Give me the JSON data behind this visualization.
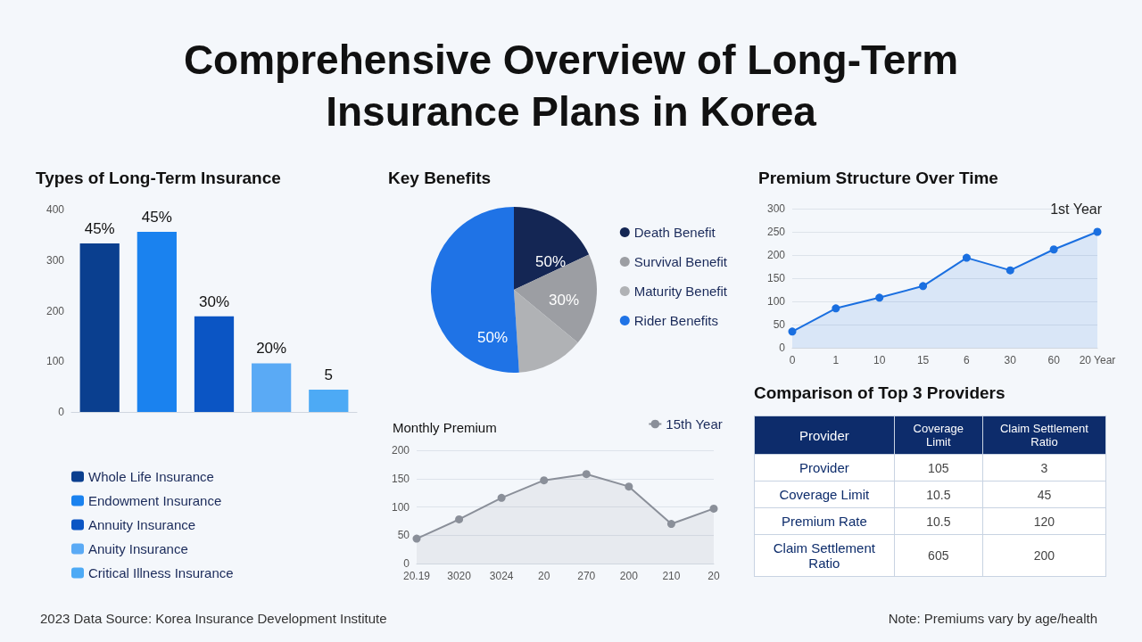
{
  "chart_data": [
    {
      "type": "bar",
      "title": "Types of Long-Term Insurance",
      "categories": [
        null
      ],
      "series": [
        {
          "name": "Whole Life Insurance",
          "color": "#0a3f8f",
          "values": [
            333
          ]
        },
        {
          "name": "Endowment Insurance",
          "color": "#1a82ef",
          "values": [
            356
          ]
        },
        {
          "name": "Annuity Insurance",
          "color": "#0b55c4",
          "values": [
            189
          ]
        },
        {
          "name": "Anuity Insurance",
          "color": "#5aaaf5",
          "values": [
            96
          ]
        },
        {
          "name": "Critical Illness Insurance",
          "color": "#4daaf5",
          "values": [
            44
          ]
        }
      ],
      "annotations": [
        {
          "text": "45%",
          "y": 333
        },
        {
          "text": "45%",
          "y": 356
        },
        {
          "text": "30%",
          "y": 189
        },
        {
          "text": "20%",
          "y": 96
        },
        {
          "text": "5",
          "y": 44
        }
      ],
      "ylim": [
        0,
        400
      ],
      "yticks": [
        0,
        100,
        200,
        300,
        400
      ],
      "tick_labels": "y",
      "legend": "bottom left"
    },
    {
      "type": "pie",
      "title": "Key Benefits",
      "categories": [
        "Death Benefit",
        "Survival Benefit",
        "Maturity Benefit",
        "Rider Benefits"
      ],
      "values": [
        18,
        18,
        13,
        51
      ],
      "colors": [
        "#142654",
        "#9c9ea3",
        "#b0b2b5",
        "#1f73e6"
      ],
      "annotations": [
        "50%",
        "30%",
        "50%"
      ],
      "legend": "right"
    },
    {
      "type": "area",
      "title": "Premium Structure Over Time",
      "categories": [
        "0",
        "1",
        "10",
        "15",
        "6",
        "30",
        "60",
        "20 Year"
      ],
      "values": [
        35,
        85,
        108,
        133,
        194,
        167,
        212,
        250
      ],
      "color": "#1a6fe0",
      "ylim": [
        0,
        300
      ],
      "yticks": [
        0,
        50,
        100,
        150,
        200,
        250,
        300
      ],
      "grid": "y",
      "marker": "circle",
      "annotations": [
        "1st Year"
      ]
    },
    {
      "type": "area",
      "title": "Monthly Premium",
      "categories": [
        "20.19",
        "3020",
        "3024",
        "20",
        "270",
        "200",
        "210",
        "20"
      ],
      "series": [
        {
          "name": "15th Year",
          "color": "#8a8f99",
          "values": [
            44,
            78,
            116,
            147,
            158,
            136,
            70,
            97
          ]
        }
      ],
      "ylim": [
        0,
        200
      ],
      "yticks": [
        0,
        50,
        100,
        150,
        200
      ],
      "grid": "y",
      "marker": "circle",
      "legend": "top right"
    },
    {
      "type": "other",
      "title": "Comparison of Top 3 Providers",
      "ylabel": "Provider",
      "data_labels": true,
      "categories": [
        "Provider",
        "Coverage Limit",
        "Premium Rate",
        "Claim Settlement Ratio"
      ],
      "series": [
        {
          "name": "Coverage Limit",
          "values": [
            105,
            10.5,
            10.5,
            605
          ]
        },
        {
          "name": "Claim Settlement Ratio",
          "values": [
            3,
            45,
            120,
            200
          ]
        }
      ]
    },
    {
      "type": "other",
      "title": "Comprehensive Overview of Long-Term Insurance Plans in Korea",
      "annotations": [
        "2023 Data Source: Korea Insurance Development Institute",
        "Note: Premiums vary by age/health"
      ]
    }
  ]
}
